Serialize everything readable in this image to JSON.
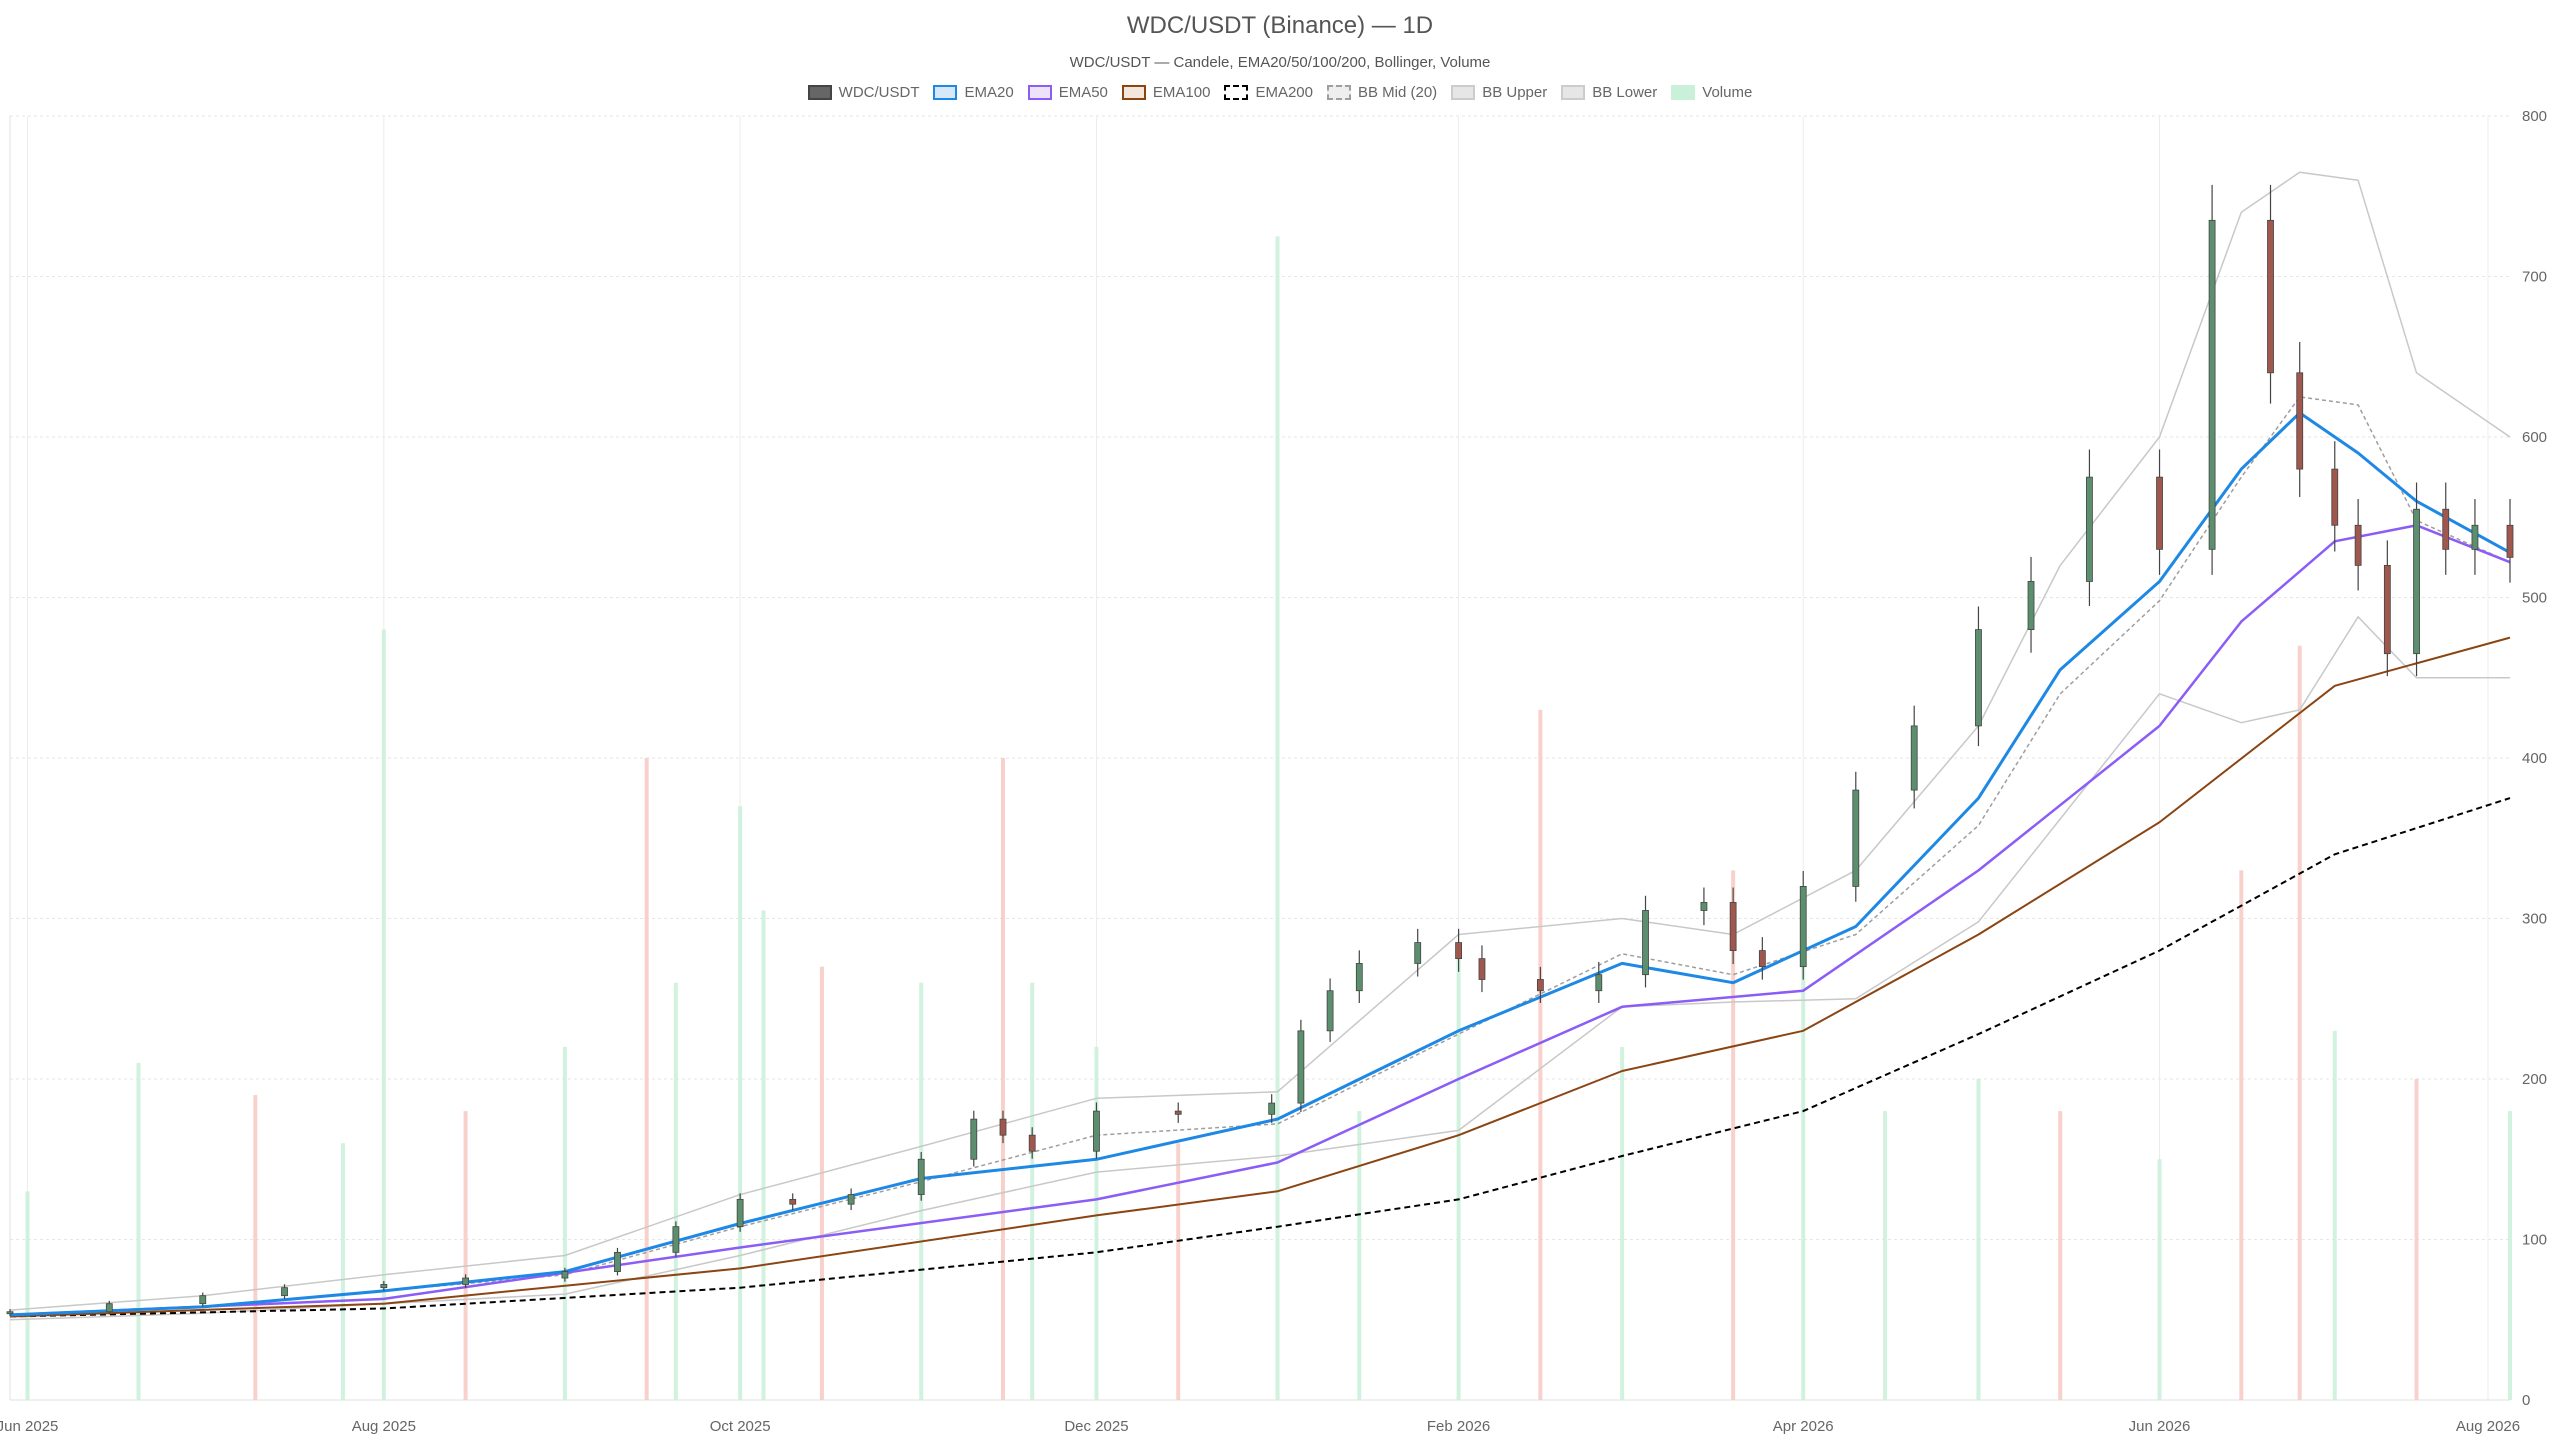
{
  "chart_data": {
    "type": "candlestick",
    "title": "WDC/USDT (Binance) — 1D",
    "subtitle": "WDC/USDT — Candele, EMA20/50/100/200, Bollinger, Volume",
    "legend": [
      {
        "label": "WDC/USDT",
        "fill": "#666666",
        "stroke": "#444444",
        "dash": false
      },
      {
        "label": "EMA20",
        "fill": "#d6e9fb",
        "stroke": "#1e88e5",
        "dash": false
      },
      {
        "label": "EMA50",
        "fill": "#ece2fb",
        "stroke": "#8b5cf6",
        "dash": false
      },
      {
        "label": "EMA100",
        "fill": "#f3e6dc",
        "stroke": "#8b4513",
        "dash": false
      },
      {
        "label": "EMA200",
        "fill": "#ffffff",
        "stroke": "#000000",
        "dash": true
      },
      {
        "label": "BB Mid (20)",
        "fill": "#eeeeee",
        "stroke": "#9e9e9e",
        "dash": true
      },
      {
        "label": "BB Upper",
        "fill": "#e6e6e6",
        "stroke": "#cccccc",
        "dash": false
      },
      {
        "label": "BB Lower",
        "fill": "#e6e6e6",
        "stroke": "#cccccc",
        "dash": false
      },
      {
        "label": "Volume",
        "fill": "#c9f0d9",
        "stroke": "#c9f0d9",
        "dash": false
      }
    ],
    "x_ticks": [
      "Jun 2025",
      "Aug 2025",
      "Oct 2025",
      "Dec 2025",
      "Feb 2026",
      "Apr 2026",
      "Jun 2026",
      "Aug 2026"
    ],
    "y_ticks": [
      "0",
      "100",
      "200",
      "300",
      "400",
      "500",
      "600",
      "700",
      "800"
    ],
    "ylim": [
      0,
      800
    ],
    "x_range": [
      "2025-05-29",
      "2026-07-31"
    ],
    "grid": true,
    "legend_position": "top",
    "colors": {
      "up": "#5b8f6e",
      "down": "#a0584e",
      "wick": "#444444",
      "vol_up": "#c9f0d9",
      "vol_down": "#f7c9c3",
      "ema20": "#1e88e5",
      "ema50": "#8b5cf6",
      "ema100": "#8b4513",
      "ema200": "#000000",
      "bb_mid": "#9e9e9e",
      "bb_band": "#c8c8c8"
    },
    "series": [
      {
        "name": "WDC/USDT",
        "note": "candles",
        "x": [
          "2025-05-29",
          "2025-06-15",
          "2025-07-01",
          "2025-07-15",
          "2025-08-01",
          "2025-08-15",
          "2025-09-01",
          "2025-09-10",
          "2025-09-20",
          "2025-10-01",
          "2025-10-10",
          "2025-10-20",
          "2025-11-01",
          "2025-11-10",
          "2025-11-15",
          "2025-11-20",
          "2025-12-01",
          "2025-12-15",
          "2025-12-31",
          "2026-01-05",
          "2026-01-10",
          "2026-01-15",
          "2026-01-25",
          "2026-02-01",
          "2026-02-05",
          "2026-02-15",
          "2026-02-25",
          "2026-03-05",
          "2026-03-15",
          "2026-03-20",
          "2026-03-25",
          "2026-04-01",
          "2026-04-10",
          "2026-04-20",
          "2026-05-01",
          "2026-05-10",
          "2026-05-20",
          "2026-06-01",
          "2026-06-10",
          "2026-06-20",
          "2026-06-25",
          "2026-07-01",
          "2026-07-05",
          "2026-07-10",
          "2026-07-15",
          "2026-07-20",
          "2026-07-25",
          "2026-07-31"
        ],
        "values": [
          55,
          60,
          65,
          70,
          72,
          76,
          80,
          92,
          108,
          125,
          122,
          128,
          150,
          175,
          165,
          155,
          180,
          178,
          185,
          230,
          255,
          272,
          285,
          275,
          262,
          255,
          265,
          305,
          310,
          280,
          270,
          320,
          380,
          420,
          480,
          510,
          575,
          530,
          735,
          640,
          580,
          545,
          520,
          465,
          555,
          530,
          545,
          525
        ]
      },
      {
        "name": "EMA20",
        "x": [
          "2025-05-29",
          "2025-07-01",
          "2025-08-01",
          "2025-09-01",
          "2025-10-01",
          "2025-11-01",
          "2025-12-01",
          "2026-01-01",
          "2026-02-01",
          "2026-03-01",
          "2026-03-20",
          "2026-04-10",
          "2026-05-01",
          "2026-05-15",
          "2026-06-01",
          "2026-06-15",
          "2026-06-25",
          "2026-07-05",
          "2026-07-15",
          "2026-07-31"
        ],
        "values": [
          53,
          58,
          68,
          80,
          110,
          138,
          150,
          175,
          230,
          272,
          260,
          295,
          375,
          455,
          510,
          580,
          615,
          590,
          560,
          528
        ]
      },
      {
        "name": "EMA50",
        "x": [
          "2025-05-29",
          "2025-08-01",
          "2025-10-01",
          "2025-12-01",
          "2026-01-01",
          "2026-02-01",
          "2026-03-01",
          "2026-04-01",
          "2026-05-01",
          "2026-06-01",
          "2026-06-15",
          "2026-07-01",
          "2026-07-15",
          "2026-07-31"
        ],
        "values": [
          53,
          63,
          95,
          125,
          148,
          200,
          245,
          255,
          330,
          420,
          485,
          535,
          545,
          522
        ]
      },
      {
        "name": "EMA100",
        "x": [
          "2025-05-29",
          "2025-08-01",
          "2025-10-01",
          "2025-12-01",
          "2026-01-01",
          "2026-02-01",
          "2026-03-01",
          "2026-04-01",
          "2026-05-01",
          "2026-06-01",
          "2026-07-01",
          "2026-07-31"
        ],
        "values": [
          52,
          60,
          82,
          115,
          130,
          165,
          205,
          230,
          290,
          360,
          445,
          475
        ]
      },
      {
        "name": "EMA200",
        "x": [
          "2025-05-29",
          "2025-08-01",
          "2025-10-01",
          "2025-12-01",
          "2026-01-01",
          "2026-02-01",
          "2026-03-01",
          "2026-04-01",
          "2026-05-01",
          "2026-06-01",
          "2026-07-01",
          "2026-07-31"
        ],
        "values": [
          52,
          57,
          70,
          92,
          108,
          125,
          152,
          180,
          228,
          280,
          340,
          375
        ]
      },
      {
        "name": "BB Mid (20)",
        "x": [
          "2025-05-29",
          "2025-07-01",
          "2025-08-01",
          "2025-09-01",
          "2025-10-01",
          "2025-11-01",
          "2025-12-01",
          "2026-01-01",
          "2026-02-01",
          "2026-03-01",
          "2026-03-20",
          "2026-04-10",
          "2026-05-01",
          "2026-05-15",
          "2026-06-01",
          "2026-06-15",
          "2026-06-25",
          "2026-07-05",
          "2026-07-15",
          "2026-07-31"
        ],
        "values": [
          53,
          58,
          68,
          78,
          108,
          136,
          165,
          172,
          228,
          278,
          265,
          290,
          358,
          440,
          498,
          575,
          625,
          620,
          548,
          522
        ]
      },
      {
        "name": "BB Upper",
        "x": [
          "2025-05-29",
          "2025-07-01",
          "2025-08-01",
          "2025-09-01",
          "2025-10-01",
          "2025-11-01",
          "2025-12-01",
          "2026-01-01",
          "2026-02-01",
          "2026-03-01",
          "2026-03-20",
          "2026-04-10",
          "2026-05-01",
          "2026-05-15",
          "2026-06-01",
          "2026-06-15",
          "2026-06-25",
          "2026-07-05",
          "2026-07-15",
          "2026-07-31"
        ],
        "values": [
          56,
          65,
          78,
          90,
          128,
          158,
          188,
          192,
          290,
          300,
          290,
          330,
          420,
          520,
          600,
          740,
          765,
          760,
          640,
          600
        ]
      },
      {
        "name": "BB Lower",
        "x": [
          "2025-05-29",
          "2025-07-01",
          "2025-08-01",
          "2025-09-01",
          "2025-10-01",
          "2025-11-01",
          "2025-12-01",
          "2026-01-01",
          "2026-02-01",
          "2026-03-01",
          "2026-03-20",
          "2026-04-10",
          "2026-05-01",
          "2026-05-15",
          "2026-06-01",
          "2026-06-15",
          "2026-06-25",
          "2026-07-05",
          "2026-07-15",
          "2026-07-31"
        ],
        "values": [
          50,
          54,
          60,
          66,
          90,
          118,
          142,
          152,
          168,
          245,
          248,
          250,
          298,
          362,
          440,
          422,
          430,
          488,
          450,
          450
        ]
      },
      {
        "name": "Volume",
        "note": "bars; scale relative to price axis",
        "x": [
          "2025-06-01",
          "2025-06-20",
          "2025-07-10",
          "2025-07-25",
          "2025-08-01",
          "2025-08-15",
          "2025-09-01",
          "2025-09-15",
          "2025-09-20",
          "2025-10-01",
          "2025-10-05",
          "2025-10-15",
          "2025-11-01",
          "2025-11-15",
          "2025-11-20",
          "2025-12-01",
          "2025-12-15",
          "2026-01-01",
          "2026-01-15",
          "2026-02-01",
          "2026-02-15",
          "2026-03-01",
          "2026-03-20",
          "2026-04-01",
          "2026-04-15",
          "2026-05-01",
          "2026-05-15",
          "2026-06-01",
          "2026-06-15",
          "2026-06-25",
          "2026-07-01",
          "2026-07-15",
          "2026-07-31"
        ],
        "values": [
          130,
          210,
          190,
          160,
          480,
          180,
          220,
          400,
          260,
          370,
          305,
          270,
          260,
          400,
          260,
          220,
          160,
          725,
          180,
          280,
          430,
          220,
          330,
          280,
          180,
          200,
          180,
          150,
          330,
          470,
          230,
          200,
          180
        ],
        "up": [
          true,
          true,
          false,
          true,
          true,
          false,
          true,
          false,
          true,
          true,
          true,
          false,
          true,
          false,
          true,
          true,
          false,
          true,
          true,
          true,
          false,
          true,
          false,
          true,
          true,
          true,
          false,
          true,
          false,
          false,
          true,
          false,
          true
        ]
      }
    ]
  }
}
